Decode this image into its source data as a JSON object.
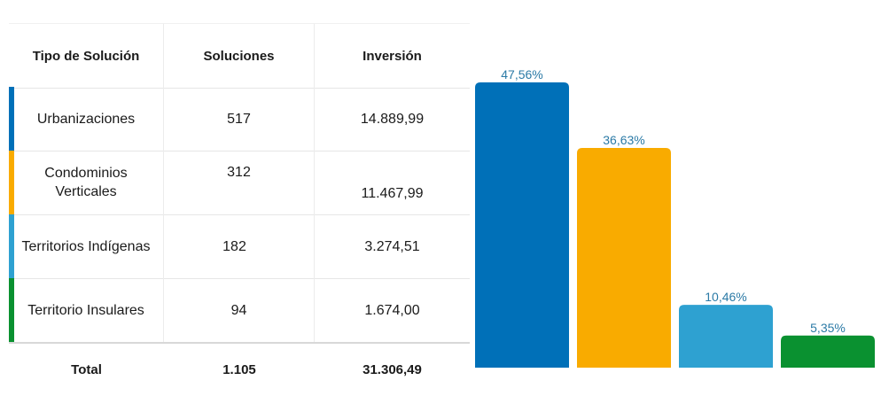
{
  "table": {
    "headers": [
      "Tipo de Solución",
      "Soluciones",
      "Inversión"
    ],
    "rows": [
      {
        "tipo": "Urbanizaciones",
        "soluciones": "517",
        "inversion": "14.889,99",
        "color": "#0070b8"
      },
      {
        "tipo": "Condominios Verticales",
        "soluciones": "312",
        "inversion": "11.467,99",
        "color": "#f9ab00"
      },
      {
        "tipo": "Territorios Indígenas",
        "soluciones": "182",
        "inversion": "3.274,51",
        "color": "#2ea1d1"
      },
      {
        "tipo": "Territorio Insulares",
        "soluciones": "94",
        "inversion": "1.674,00",
        "color": "#0a9130"
      }
    ],
    "total": {
      "label": "Total",
      "soluciones": "1.105",
      "inversion": "31.306,49"
    }
  },
  "chart_data": {
    "type": "bar",
    "categories": [
      "Urbanizaciones",
      "Condominios Verticales",
      "Territorios Indígenas",
      "Territorio Insulares"
    ],
    "values": [
      47.56,
      36.63,
      10.46,
      5.35
    ],
    "value_labels": [
      "47,56%",
      "36,63%",
      "10,46%",
      "5,35%"
    ],
    "colors": [
      "#0070b8",
      "#f9ab00",
      "#2ea1d1",
      "#0a9130"
    ],
    "ylim": [
      0,
      50
    ],
    "grid": false,
    "legend": "none"
  }
}
